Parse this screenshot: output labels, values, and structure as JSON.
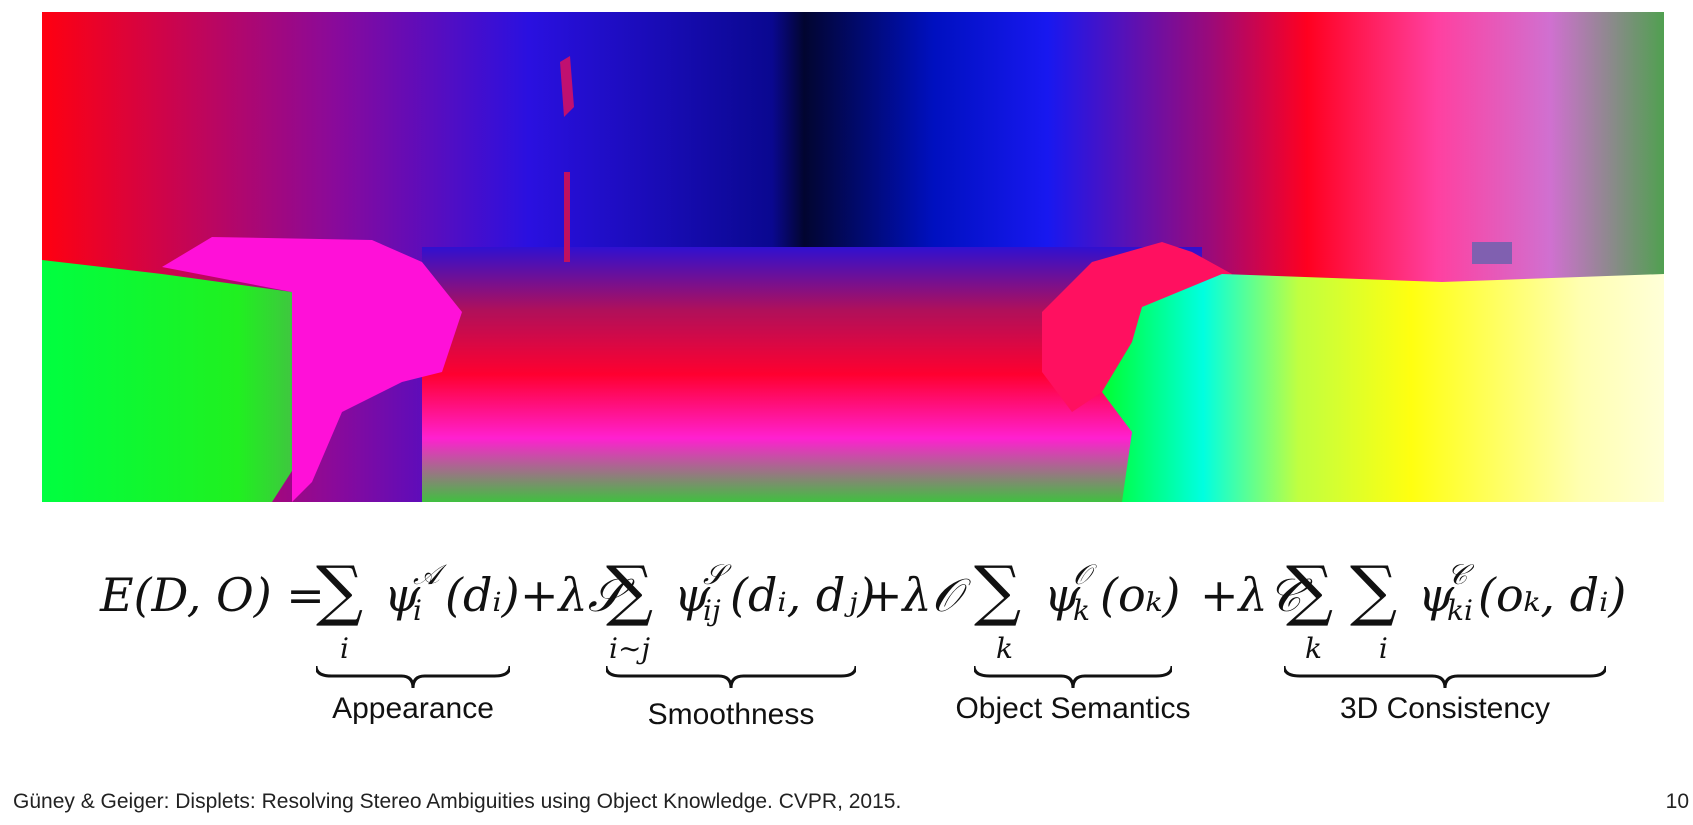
{
  "figure": {
    "image_name": "disparity-colormap-street-scene"
  },
  "equation": {
    "lhs": "E(D, O) =",
    "terms": [
      {
        "prefix": "",
        "sum_index": "i",
        "potential": "ψ",
        "superscript": "𝒜",
        "subscript": "i",
        "args": "(dᵢ)"
      },
      {
        "prefix": "+λ𝒮",
        "sum_index": "i∼j",
        "potential": "ψ",
        "superscript": "𝒮",
        "subscript": "ij",
        "args": "(dᵢ, dⱼ)"
      },
      {
        "prefix": "+λ𝒪",
        "sum_index": "k",
        "potential": "ψ",
        "superscript": "𝒪",
        "subscript": "k",
        "args": "(oₖ)"
      },
      {
        "prefix": "+λ𝒞",
        "sum_index": "k i",
        "potential": "ψ",
        "superscript": "𝒞",
        "subscript": "ki",
        "args": "(oₖ, dᵢ)"
      }
    ],
    "labels": [
      "Appearance",
      "Smoothness",
      "Object Semantics",
      "3D Consistency"
    ]
  },
  "footer": {
    "citation": "Güney & Geiger: Displets: Resolving Stereo Ambiguities using Object Knowledge. CVPR, 2015.",
    "page_number": "10"
  }
}
